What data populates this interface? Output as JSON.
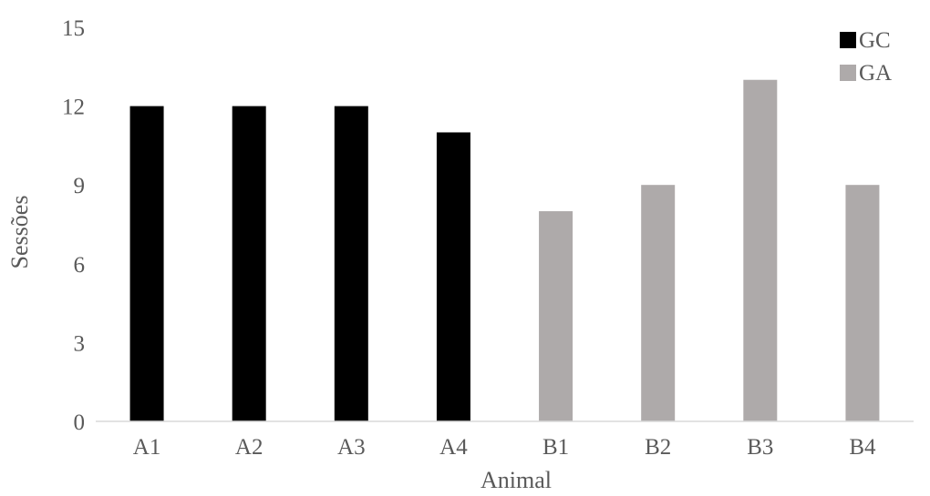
{
  "chart_data": {
    "type": "bar",
    "categories": [
      "A1",
      "A2",
      "A3",
      "A4",
      "B1",
      "B2",
      "B3",
      "B4"
    ],
    "values": [
      12,
      12,
      12,
      11,
      8,
      9,
      13,
      9
    ],
    "groups": [
      "GC",
      "GC",
      "GC",
      "GC",
      "GA",
      "GA",
      "GA",
      "GA"
    ],
    "series": [
      {
        "name": "GC",
        "color": "#000000"
      },
      {
        "name": "GA",
        "color": "#aeaaaa"
      }
    ],
    "title": "",
    "xlabel": "Animal",
    "ylabel": "Sessões",
    "ylim": [
      0,
      15
    ],
    "yticks": [
      0,
      3,
      6,
      9,
      12,
      15
    ],
    "grid": false,
    "legend_position": "top-right"
  }
}
